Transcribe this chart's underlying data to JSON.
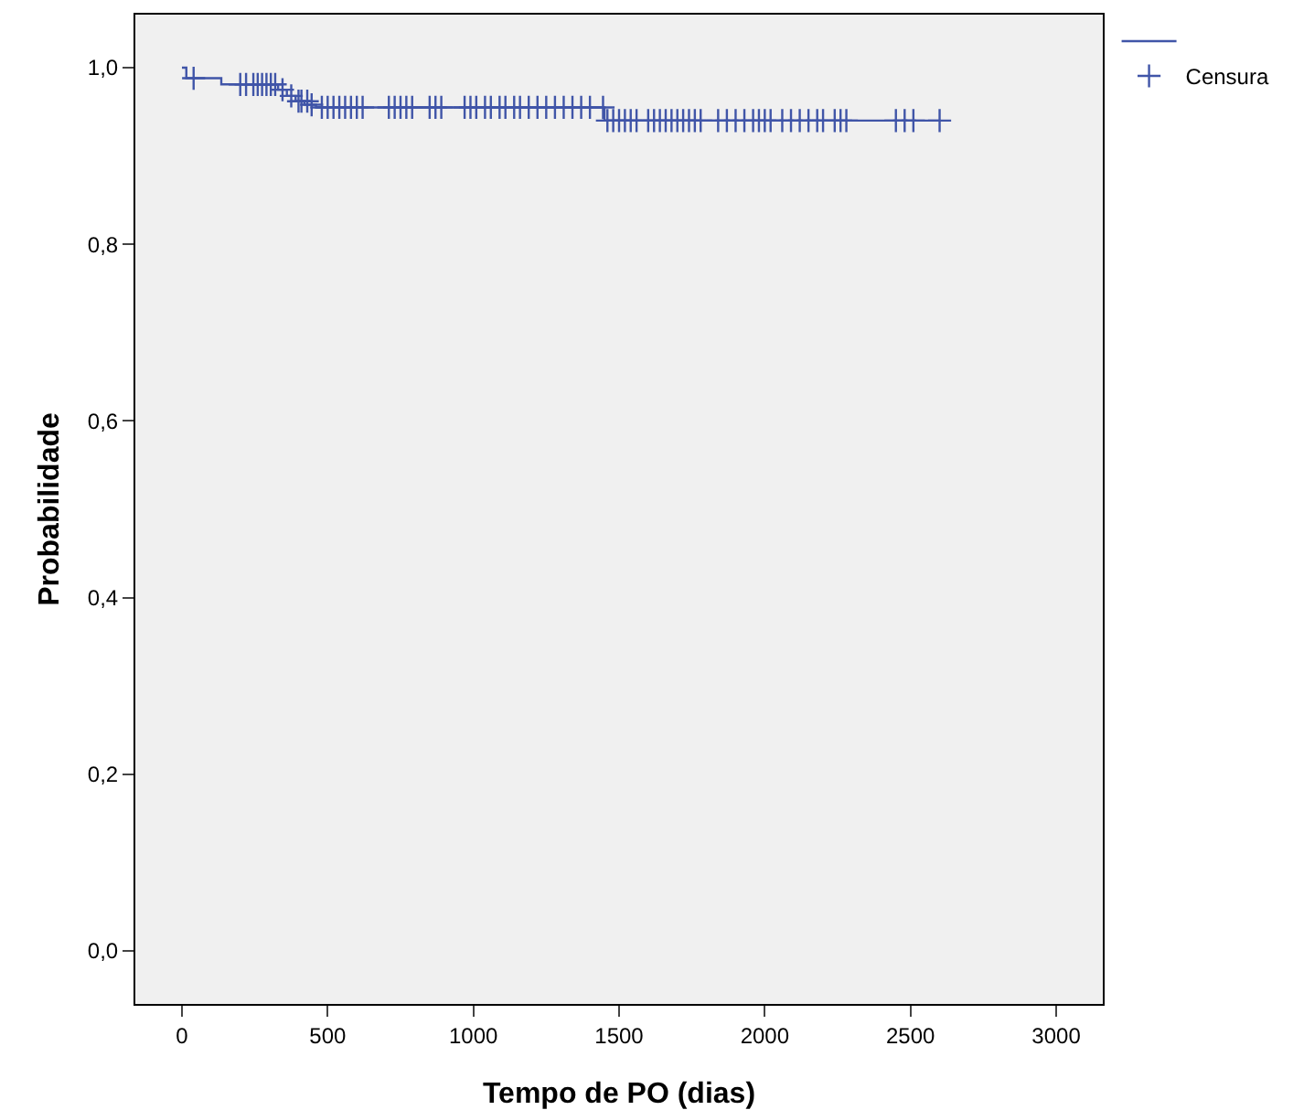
{
  "chart_data": {
    "type": "step",
    "xlabel": "Tempo de PO (dias)",
    "ylabel": "Probabilidade",
    "xlim": [
      -160,
      3160
    ],
    "xticks": [
      0,
      500,
      1000,
      1500,
      2000,
      2500,
      3000
    ],
    "ylim": [
      -0.06,
      1.06
    ],
    "yticks": [
      {
        "value": 0,
        "label": "0,0"
      },
      {
        "value": 0.2,
        "label": "0,2"
      },
      {
        "value": 0.4,
        "label": "0,4"
      },
      {
        "value": 0.6,
        "label": "0,6"
      },
      {
        "value": 0.8,
        "label": "0,8"
      },
      {
        "value": 1,
        "label": "1,0"
      }
    ],
    "grid": false,
    "legend": "top right",
    "series": [
      {
        "type": "step",
        "color": "#4055a8",
        "x": [
          0,
          15,
          135,
          330,
          360,
          390,
          420,
          460,
          1450,
          2600
        ],
        "values": [
          1.0,
          0.988,
          0.981,
          0.975,
          0.968,
          0.962,
          0.958,
          0.955,
          0.94,
          0.94
        ]
      },
      {
        "type": "scatter",
        "name": "Censura",
        "color": "#4055a8",
        "marker": "cross",
        "x": [
          40,
          200,
          220,
          245,
          260,
          275,
          290,
          305,
          320,
          345,
          375,
          400,
          410,
          430,
          445,
          480,
          500,
          520,
          540,
          560,
          580,
          600,
          620,
          710,
          730,
          750,
          770,
          790,
          850,
          870,
          890,
          970,
          990,
          1010,
          1040,
          1060,
          1090,
          1110,
          1140,
          1160,
          1190,
          1220,
          1250,
          1280,
          1310,
          1340,
          1370,
          1400,
          1445,
          1460,
          1480,
          1500,
          1520,
          1540,
          1560,
          1600,
          1620,
          1640,
          1660,
          1680,
          1700,
          1720,
          1740,
          1760,
          1780,
          1840,
          1870,
          1900,
          1930,
          1960,
          1980,
          2000,
          2020,
          2060,
          2090,
          2120,
          2150,
          2180,
          2200,
          2240,
          2260,
          2280,
          2450,
          2480,
          2510,
          2600
        ],
        "values": [
          0.988,
          0.981,
          0.981,
          0.981,
          0.981,
          0.981,
          0.981,
          0.981,
          0.981,
          0.975,
          0.968,
          0.962,
          0.962,
          0.962,
          0.958,
          0.955,
          0.955,
          0.955,
          0.955,
          0.955,
          0.955,
          0.955,
          0.955,
          0.955,
          0.955,
          0.955,
          0.955,
          0.955,
          0.955,
          0.955,
          0.955,
          0.955,
          0.955,
          0.955,
          0.955,
          0.955,
          0.955,
          0.955,
          0.955,
          0.955,
          0.955,
          0.955,
          0.955,
          0.955,
          0.955,
          0.955,
          0.955,
          0.955,
          0.955,
          0.94,
          0.94,
          0.94,
          0.94,
          0.94,
          0.94,
          0.94,
          0.94,
          0.94,
          0.94,
          0.94,
          0.94,
          0.94,
          0.94,
          0.94,
          0.94,
          0.94,
          0.94,
          0.94,
          0.94,
          0.94,
          0.94,
          0.94,
          0.94,
          0.94,
          0.94,
          0.94,
          0.94,
          0.94,
          0.94,
          0.94,
          0.94,
          0.94,
          0.94,
          0.94,
          0.94,
          0.94
        ]
      }
    ]
  }
}
